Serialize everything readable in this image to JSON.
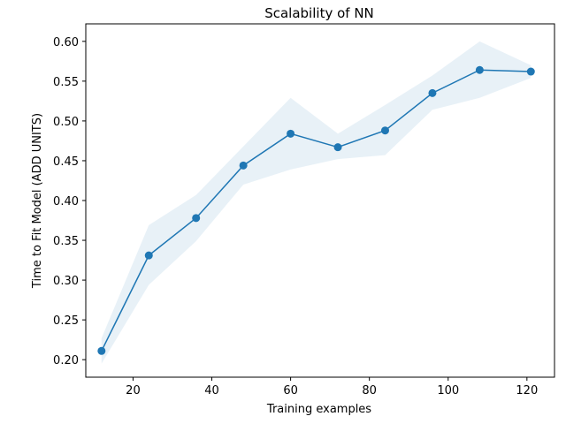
{
  "chart_data": {
    "type": "line",
    "title": "Scalability of NN",
    "xlabel": "Training examples",
    "ylabel": "Time to Fit Model (ADD UNITS)",
    "xlim": [
      8,
      127
    ],
    "ylim": [
      0.178,
      0.622
    ],
    "x_ticks": [
      20,
      40,
      60,
      80,
      100,
      120
    ],
    "y_ticks": [
      0.2,
      0.25,
      0.3,
      0.35,
      0.4,
      0.45,
      0.5,
      0.55,
      0.6
    ],
    "grid": false,
    "legend": "none",
    "series": [
      {
        "color": "#1f77b4",
        "band_color": "#1f77b4",
        "x": [
          12,
          24,
          36,
          48,
          60,
          72,
          84,
          96,
          108,
          121
        ],
        "y": [
          0.211,
          0.331,
          0.378,
          0.444,
          0.484,
          0.467,
          0.488,
          0.535,
          0.564,
          0.562
        ],
        "upper": [
          0.227,
          0.369,
          0.407,
          0.468,
          0.529,
          0.484,
          0.52,
          0.557,
          0.6,
          0.57
        ],
        "lower": [
          0.195,
          0.294,
          0.349,
          0.42,
          0.439,
          0.452,
          0.457,
          0.514,
          0.529,
          0.554
        ]
      }
    ]
  }
}
